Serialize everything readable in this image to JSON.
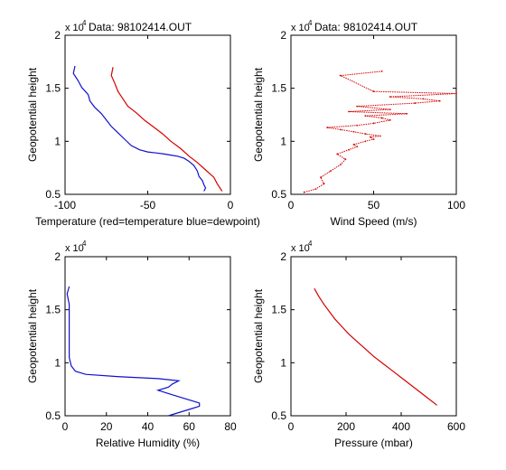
{
  "chart_data": [
    {
      "type": "line",
      "title": "Data: 98102414.OUT",
      "xlabel": "Temperature (red=temperature blue=dewpoint)",
      "ylabel": "Geopotential height",
      "exponent_label": "x 10",
      "exponent_power": "4",
      "xlim": [
        -100,
        0
      ],
      "ylim": [
        0.5,
        2.0
      ],
      "xticks": [
        -100,
        -50,
        0
      ],
      "yticks": [
        0.5,
        1,
        1.5,
        2
      ],
      "series": [
        {
          "color": "#d40000",
          "x": [
            -71,
            -72,
            -70,
            -68,
            -65,
            -62,
            -57,
            -52,
            -46,
            -41,
            -36,
            -30,
            -25,
            -20,
            -15,
            -10,
            -8,
            -5
          ],
          "y": [
            1.7,
            1.62,
            1.55,
            1.47,
            1.4,
            1.33,
            1.27,
            1.2,
            1.13,
            1.07,
            1.0,
            0.93,
            0.86,
            0.8,
            0.73,
            0.66,
            0.6,
            0.53
          ]
        },
        {
          "color": "#1010cc",
          "x": [
            -94,
            -95,
            -92,
            -90,
            -86,
            -85,
            -82,
            -78,
            -75,
            -72,
            -68,
            -64,
            -60,
            -55,
            -50,
            -45,
            -40,
            -36,
            -32,
            -28,
            -25,
            -22,
            -20,
            -19,
            -17,
            -16,
            -15,
            -16
          ],
          "y": [
            1.71,
            1.64,
            1.57,
            1.51,
            1.44,
            1.38,
            1.32,
            1.26,
            1.2,
            1.14,
            1.08,
            1.02,
            0.96,
            0.92,
            0.9,
            0.89,
            0.88,
            0.87,
            0.86,
            0.84,
            0.81,
            0.77,
            0.72,
            0.67,
            0.63,
            0.59,
            0.56,
            0.53
          ]
        }
      ]
    },
    {
      "type": "scatter",
      "title": "Data: 98102414.OUT",
      "xlabel": "Wind Speed (m/s)",
      "ylabel": "Geopotential height",
      "exponent_label": "x 10",
      "exponent_power": "4",
      "xlim": [
        0,
        100
      ],
      "ylim": [
        0.5,
        2.0
      ],
      "xticks": [
        0,
        50,
        100
      ],
      "yticks": [
        0.5,
        1,
        1.5,
        2
      ],
      "series": [
        {
          "color": "#d40000",
          "x": [
            8,
            15,
            20,
            18,
            24,
            30,
            33,
            28,
            35,
            40,
            38,
            45,
            50,
            48,
            54,
            45,
            38,
            30,
            22,
            40,
            50,
            60,
            55,
            45,
            70,
            35,
            60,
            40,
            75,
            90,
            80,
            60,
            100,
            50,
            30,
            55
          ],
          "y": [
            0.52,
            0.55,
            0.6,
            0.66,
            0.72,
            0.78,
            0.83,
            0.88,
            0.92,
            0.95,
            0.97,
            1.0,
            1.02,
            1.04,
            1.05,
            1.07,
            1.09,
            1.11,
            1.13,
            1.15,
            1.17,
            1.2,
            1.22,
            1.24,
            1.26,
            1.28,
            1.3,
            1.33,
            1.36,
            1.38,
            1.4,
            1.42,
            1.45,
            1.47,
            1.62,
            1.66
          ]
        }
      ]
    },
    {
      "type": "line",
      "title": "",
      "xlabel": "Relative Humidity (%)",
      "ylabel": "Geopotential height",
      "exponent_label": "x 10",
      "exponent_power": "4",
      "xlim": [
        0,
        80
      ],
      "ylim": [
        0.5,
        2.0
      ],
      "xticks": [
        0,
        20,
        40,
        60,
        80
      ],
      "yticks": [
        0.5,
        1,
        1.5,
        2
      ],
      "series": [
        {
          "color": "#1010cc",
          "x": [
            2,
            1,
            2,
            2,
            2,
            2,
            2,
            2,
            3,
            5,
            10,
            25,
            45,
            55,
            52,
            50,
            45,
            50,
            55,
            60,
            65,
            65,
            60,
            55,
            50
          ],
          "y": [
            1.72,
            1.65,
            1.55,
            1.45,
            1.35,
            1.25,
            1.15,
            1.05,
            0.97,
            0.92,
            0.89,
            0.87,
            0.85,
            0.83,
            0.8,
            0.77,
            0.74,
            0.71,
            0.68,
            0.65,
            0.62,
            0.59,
            0.56,
            0.53,
            0.5
          ]
        }
      ]
    },
    {
      "type": "line",
      "title": "",
      "xlabel": "Pressure (mbar)",
      "ylabel": "Geopotential height",
      "exponent_label": "x 10",
      "exponent_power": "4",
      "xlim": [
        0,
        600
      ],
      "ylim": [
        0.5,
        2.0
      ],
      "xticks": [
        0,
        200,
        400,
        600
      ],
      "yticks": [
        0.5,
        1,
        1.5,
        2
      ],
      "series": [
        {
          "color": "#d40000",
          "x": [
            85,
            100,
            120,
            140,
            160,
            185,
            210,
            240,
            270,
            300,
            335,
            370,
            410,
            450,
            490,
            530
          ],
          "y": [
            1.7,
            1.63,
            1.55,
            1.48,
            1.41,
            1.34,
            1.27,
            1.2,
            1.13,
            1.06,
            0.99,
            0.92,
            0.84,
            0.76,
            0.68,
            0.6
          ]
        }
      ]
    }
  ]
}
